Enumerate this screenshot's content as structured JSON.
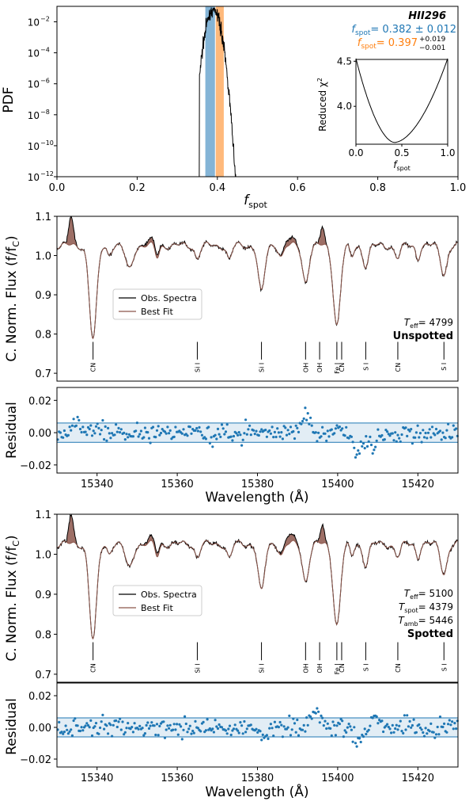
{
  "colors": {
    "obs": "#000000",
    "fit": "#8c564b",
    "residual": "#1f77b4",
    "band1": "#1f77b4",
    "band2": "#ff7f0e",
    "spotted_label": "#8c564b"
  },
  "chart_data": [
    {
      "type": "line",
      "id": "pdf",
      "xlabel": "f",
      "xlabel_sub": "spot",
      "ylabel": "PDF",
      "xlim": [
        0,
        1
      ],
      "log_y": true,
      "ylim_exp": [
        -12,
        -1
      ],
      "xticks": [
        "0.0",
        "0.2",
        "0.4",
        "0.6",
        "0.8",
        "1.0"
      ],
      "yticks": [
        "10",
        "10",
        "10",
        "10",
        "10",
        "10"
      ],
      "ytick_exp": [
        "-12",
        "-10",
        "-8",
        "-6",
        "-4",
        "-2"
      ],
      "star": "HII296",
      "f1_label": "f",
      "f1_value": "= 0.382 ± 0.012",
      "f2_label": "f",
      "f2_value": "= 0.397",
      "f2_err_plus": "+0.019",
      "f2_err_minus": "−0.001",
      "bands": [
        {
          "lo": 0.37,
          "hi": 0.394
        },
        {
          "lo": 0.396,
          "hi": 0.416
        }
      ],
      "pdf_peak": 0.39,
      "inset": {
        "type": "line",
        "ylabel": "Reduced χ",
        "ylabel_sup": "2",
        "xlabel": "f",
        "xlabel_sub": "spot",
        "xticks": [
          "0.0",
          "0.5",
          "1.0"
        ],
        "yticks": [
          "4.0",
          "4.5"
        ],
        "xlim": [
          0,
          1
        ],
        "ylim": [
          3.58,
          4.52
        ],
        "curve_min": 3.6,
        "curve_max": 4.53,
        "curve_center": 0.42
      }
    },
    {
      "type": "line",
      "id": "spec1",
      "ylabel": "C. Norm. Flux (f/f",
      "ylabel_sub": "C",
      "ylabel_end": ")",
      "xlim": [
        15330,
        15430
      ],
      "ylim": [
        0.68,
        1.1
      ],
      "yticks": [
        "0.7",
        "0.8",
        "0.9",
        "1.0",
        "1.1"
      ],
      "ytick_values": [
        0.7,
        0.8,
        0.9,
        1.0,
        1.1
      ],
      "legend": [
        "Obs. Spectra",
        "Best Fit"
      ],
      "teff": "= 4799",
      "tspot": "",
      "tamb": "",
      "state": "Unspotted",
      "lines": [
        {
          "label": "CN",
          "x": 15339
        },
        {
          "label": "Si I",
          "x": 15365
        },
        {
          "label": "Si I",
          "x": 15381
        },
        {
          "label": "OH",
          "x": 15392
        },
        {
          "label": "OH",
          "x": 15395.5
        },
        {
          "label": "Fe I",
          "x": 15399.8
        },
        {
          "label": "CN",
          "x": 15401
        },
        {
          "label": "S I",
          "x": 15407
        },
        {
          "label": "CN",
          "x": 15415
        },
        {
          "label": "S I",
          "x": 15426.5
        }
      ]
    },
    {
      "type": "scatter",
      "id": "res1",
      "ylabel": "Residual",
      "xlabel": "Wavelength (Å)",
      "xlim": [
        15330,
        15430
      ],
      "ylim": [
        -0.025,
        0.028
      ],
      "yticks": [
        "0.02",
        "0.00",
        "−0.02"
      ],
      "ytick_values": [
        0.02,
        0.0,
        -0.02
      ],
      "xticks": [
        "15340",
        "15360",
        "15380",
        "15400",
        "15420"
      ],
      "xtick_values": [
        15340,
        15360,
        15380,
        15400,
        15420
      ],
      "band": 0.006
    },
    {
      "type": "line",
      "id": "spec2",
      "ylabel": "C. Norm. Flux (f/f",
      "ylabel_sub": "C",
      "ylabel_end": ")",
      "xlim": [
        15330,
        15430
      ],
      "ylim": [
        0.68,
        1.1
      ],
      "yticks": [
        "0.7",
        "0.8",
        "0.9",
        "1.0",
        "1.1"
      ],
      "ytick_values": [
        0.7,
        0.8,
        0.9,
        1.0,
        1.1
      ],
      "legend": [
        "Obs. Spectra",
        "Best Fit"
      ],
      "teff": "= 5100",
      "tspot": "= 4379",
      "tamb": "= 5446",
      "state": "Spotted",
      "lines": [
        {
          "label": "CN",
          "x": 15339
        },
        {
          "label": "Si I",
          "x": 15365
        },
        {
          "label": "Si I",
          "x": 15381
        },
        {
          "label": "OH",
          "x": 15392
        },
        {
          "label": "OH",
          "x": 15395.5
        },
        {
          "label": "Fe I",
          "x": 15399.8
        },
        {
          "label": "CN",
          "x": 15401
        },
        {
          "label": "S I",
          "x": 15407
        },
        {
          "label": "CN",
          "x": 15415
        },
        {
          "label": "S I",
          "x": 15426.5
        }
      ]
    },
    {
      "type": "scatter",
      "id": "res2",
      "ylabel": "Residual",
      "xlabel": "Wavelength (Å)",
      "xlim": [
        15330,
        15430
      ],
      "ylim": [
        -0.025,
        0.028
      ],
      "yticks": [
        "0.02",
        "0.00",
        "−0.02"
      ],
      "ytick_values": [
        0.02,
        0.0,
        -0.02
      ],
      "xticks": [
        "15340",
        "15360",
        "15380",
        "15400",
        "15420"
      ],
      "xtick_values": [
        15340,
        15360,
        15380,
        15400,
        15420
      ],
      "band": 0.006
    }
  ]
}
